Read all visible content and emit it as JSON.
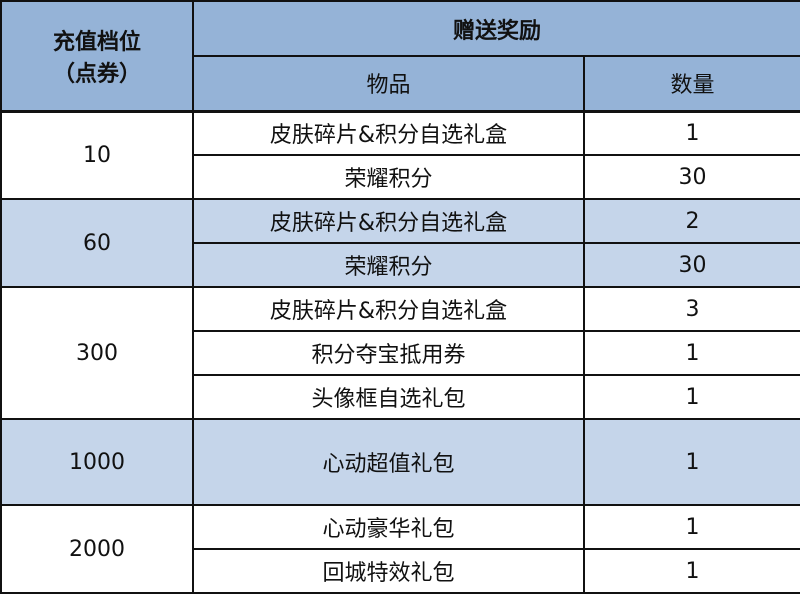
{
  "header": {
    "tier_label_line1": "充值档位",
    "tier_label_line2": "（点券）",
    "reward_label": "赠送奖励",
    "item_label": "物品",
    "qty_label": "数量"
  },
  "colors": {
    "header_bg": "#95b3d7",
    "alt_row_bg": "#c5d5ea"
  },
  "tiers": [
    {
      "amount": "10",
      "shaded": false,
      "rows": [
        {
          "item": "皮肤碎片&积分自选礼盒",
          "qty": "1"
        },
        {
          "item": "荣耀积分",
          "qty": "30"
        }
      ]
    },
    {
      "amount": "60",
      "shaded": true,
      "rows": [
        {
          "item": "皮肤碎片&积分自选礼盒",
          "qty": "2"
        },
        {
          "item": "荣耀积分",
          "qty": "30"
        }
      ]
    },
    {
      "amount": "300",
      "shaded": false,
      "rows": [
        {
          "item": "皮肤碎片&积分自选礼盒",
          "qty": "3"
        },
        {
          "item": "积分夺宝抵用券",
          "qty": "1"
        },
        {
          "item": "头像框自选礼包",
          "qty": "1"
        }
      ]
    },
    {
      "amount": "1000",
      "shaded": true,
      "rows": [
        {
          "item": "心动超值礼包",
          "qty": "1"
        }
      ]
    },
    {
      "amount": "2000",
      "shaded": false,
      "rows": [
        {
          "item": "心动豪华礼包",
          "qty": "1"
        },
        {
          "item": "回城特效礼包",
          "qty": "1"
        }
      ]
    }
  ]
}
